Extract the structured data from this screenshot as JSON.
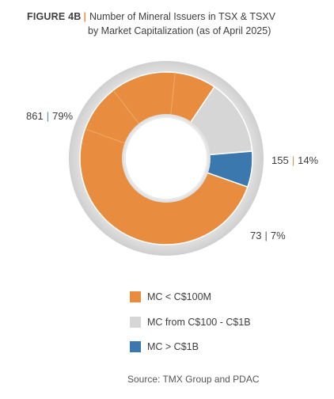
{
  "title": {
    "figure": "FIGURE 4B",
    "line1": "Number of Mineral Issuers in TSX & TSXV",
    "line2": "by Market Capitalization (as of April 2025)"
  },
  "chart_data": {
    "type": "pie",
    "donut": true,
    "title": "Number of Mineral Issuers in TSX & TSXV by Market Capitalization (as of April 2025)",
    "series": [
      {
        "name": "MC < C$100M",
        "count": 861,
        "percent": 79,
        "count_label": "861",
        "percent_label": "79%",
        "color": "#e88d3f",
        "separator_color": "#4a90a8"
      },
      {
        "name": "MC from C$100 - C$1B",
        "count": 155,
        "percent": 14,
        "count_label": "155",
        "percent_label": "14%",
        "color": "#d6d6d6",
        "separator_color": "#e88d3f"
      },
      {
        "name": "MC > C$1B",
        "count": 73,
        "percent": 7,
        "count_label": "73",
        "percent_label": "7%",
        "color": "#3a78ad",
        "separator_color": "#5a5a5a"
      }
    ],
    "legend_position": "bottom",
    "source": "Source: TMX Group and PDAC"
  }
}
